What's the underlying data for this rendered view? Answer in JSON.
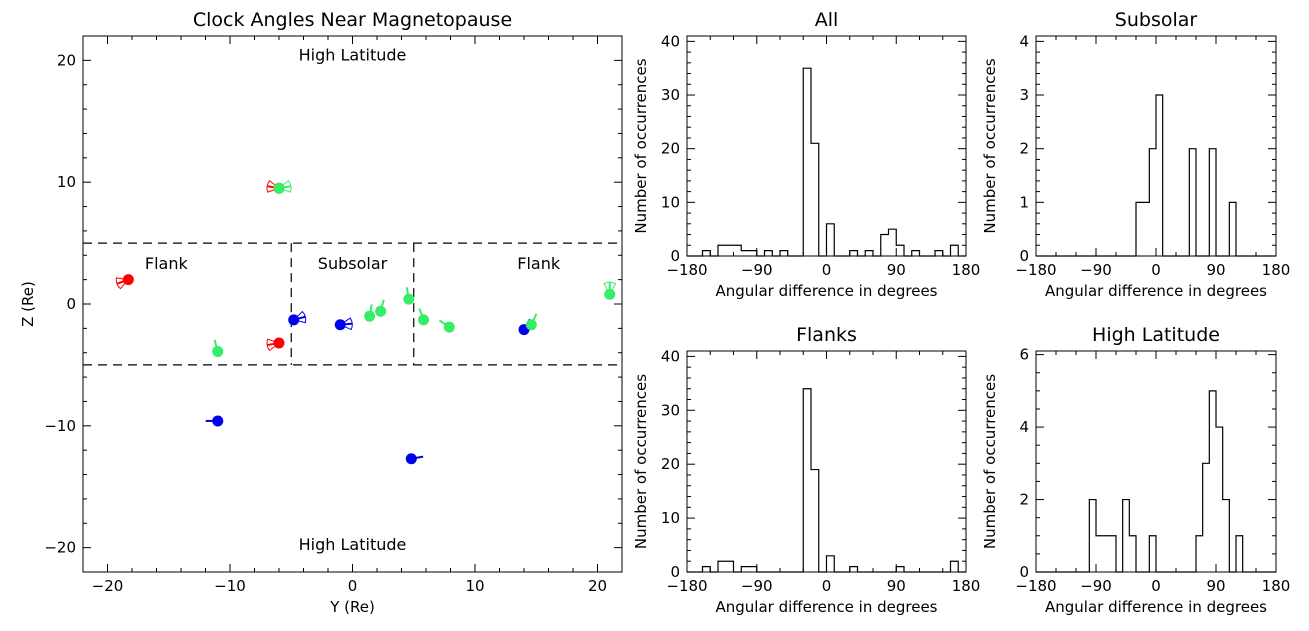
{
  "colors": {
    "axis": "#000000",
    "red": "#ff0000",
    "green": "#33ee66",
    "blue": "#0000ee"
  },
  "chart_data": [
    {
      "type": "scatter",
      "title": "Clock Angles Near Magnetopause",
      "xlabel": "Y (Re)",
      "ylabel": "Z (Re)",
      "xlim": [
        -22,
        22
      ],
      "ylim": [
        -22,
        22
      ],
      "xticks": [
        -20,
        -10,
        0,
        10,
        20
      ],
      "yticks": [
        -20,
        -10,
        0,
        10,
        20
      ],
      "xtick_labels": [
        "−20",
        "−10",
        "0",
        "10",
        "20"
      ],
      "ytick_labels": [
        "−20",
        "−10",
        "0",
        "10",
        "20"
      ],
      "region_labels": [
        {
          "text": "High Latitude",
          "x": 0,
          "y": 20.4
        },
        {
          "text": "High Latitude",
          "x": 0,
          "y": -19.8
        },
        {
          "text": "Flank",
          "x": -15.2,
          "y": 3.3
        },
        {
          "text": "Subsolar",
          "x": 0,
          "y": 3.3
        },
        {
          "text": "Flank",
          "x": 15.2,
          "y": 3.3
        }
      ],
      "region_lines": [
        {
          "x": [
            -22,
            22
          ],
          "y": [
            5,
            5
          ]
        },
        {
          "x": [
            -22,
            22
          ],
          "y": [
            -5,
            -5
          ]
        },
        {
          "x": [
            -5,
            -5
          ],
          "y": [
            5,
            -5
          ]
        },
        {
          "x": [
            5,
            5
          ],
          "y": [
            5,
            -5
          ]
        }
      ],
      "points": [
        {
          "y": -18.3,
          "z": 2.0,
          "color": "red",
          "tick": 200,
          "fan": true
        },
        {
          "y": -6.0,
          "z": 9.5,
          "color": "red",
          "tick": 170,
          "fan": true
        },
        {
          "y": -6.0,
          "z": 9.5,
          "color": "green",
          "tick": 10,
          "fan": true
        },
        {
          "y": -6.0,
          "z": -3.2,
          "color": "red",
          "tick": 190,
          "fan": true
        },
        {
          "y": -11.0,
          "z": -3.9,
          "color": "green",
          "tick": 105,
          "fan": false
        },
        {
          "y": -11.0,
          "z": -9.6,
          "color": "blue",
          "tick": 180,
          "fan": false
        },
        {
          "y": -4.8,
          "z": -1.3,
          "color": "blue",
          "tick": 15,
          "fan": true
        },
        {
          "y": -1.0,
          "z": -1.7,
          "color": "blue",
          "tick": 5,
          "fan": true
        },
        {
          "y": 1.4,
          "z": -1.0,
          "color": "green",
          "tick": 80,
          "fan": false
        },
        {
          "y": 2.3,
          "z": -0.6,
          "color": "green",
          "tick": 75,
          "fan": false
        },
        {
          "y": 4.6,
          "z": 0.4,
          "color": "green",
          "tick": 100,
          "fan": false
        },
        {
          "y": 4.8,
          "z": -12.7,
          "color": "blue",
          "tick": 10,
          "fan": false
        },
        {
          "y": 5.8,
          "z": -1.3,
          "color": "green",
          "tick": 110,
          "fan": false
        },
        {
          "y": 7.9,
          "z": -1.9,
          "color": "green",
          "tick": 145,
          "fan": false
        },
        {
          "y": 14.0,
          "z": -2.1,
          "color": "blue",
          "tick": 60,
          "fan": false
        },
        {
          "y": 14.6,
          "z": -1.7,
          "color": "green",
          "tick": 65,
          "fan": false
        },
        {
          "y": 21.0,
          "z": 0.8,
          "color": "green",
          "tick": 90,
          "fan": true
        }
      ]
    },
    {
      "type": "histogram",
      "title": "All",
      "xlabel": "Angular difference in degrees",
      "ylabel": "Number of occurrences",
      "xlim": [
        -180,
        180
      ],
      "ylim": [
        0,
        41
      ],
      "xticks": [
        -180,
        -90,
        0,
        90,
        180
      ],
      "xtick_labels": [
        "−180",
        "−90",
        "0",
        "90",
        "180"
      ],
      "yticks": [
        0,
        10,
        20,
        30,
        40
      ],
      "ytick_labels": [
        "0",
        "10",
        "20",
        "30",
        "40"
      ],
      "bin_edges": [
        -180,
        -170,
        -160,
        -150,
        -140,
        -130,
        -120,
        -110,
        -100,
        -90,
        -80,
        -70,
        -60,
        -50,
        -40,
        -30,
        -20,
        -10,
        0,
        10,
        20,
        30,
        40,
        50,
        60,
        70,
        80,
        90,
        100,
        110,
        120,
        130,
        140,
        150,
        160,
        170,
        180
      ],
      "counts": [
        0,
        0,
        1,
        0,
        2,
        2,
        2,
        1,
        1,
        0,
        1,
        0,
        1,
        0,
        0,
        35,
        21,
        0,
        6,
        0,
        0,
        1,
        0,
        1,
        0,
        4,
        5,
        2,
        0,
        1,
        0,
        0,
        1,
        0,
        2,
        0
      ]
    },
    {
      "type": "histogram",
      "title": "Subsolar",
      "xlabel": "Angular difference in degrees",
      "ylabel": "Number of occurrences",
      "xlim": [
        -180,
        180
      ],
      "ylim": [
        0,
        4.1
      ],
      "xticks": [
        -180,
        -90,
        0,
        90,
        180
      ],
      "xtick_labels": [
        "−180",
        "−90",
        "0",
        "90",
        "180"
      ],
      "yticks": [
        0,
        1,
        2,
        3,
        4
      ],
      "ytick_labels": [
        "0",
        "1",
        "2",
        "3",
        "4"
      ],
      "bin_edges": [
        -180,
        -170,
        -160,
        -150,
        -140,
        -130,
        -120,
        -110,
        -100,
        -90,
        -80,
        -70,
        -60,
        -50,
        -40,
        -30,
        -20,
        -10,
        0,
        10,
        20,
        30,
        40,
        50,
        60,
        70,
        80,
        90,
        100,
        110,
        120,
        130,
        140,
        150,
        160,
        170,
        180
      ],
      "counts": [
        0,
        0,
        0,
        0,
        0,
        0,
        0,
        0,
        0,
        0,
        0,
        0,
        0,
        0,
        0,
        1,
        1,
        2,
        3,
        0,
        0,
        0,
        0,
        2,
        0,
        0,
        2,
        0,
        0,
        1,
        0,
        0,
        0,
        0,
        0,
        0
      ]
    },
    {
      "type": "histogram",
      "title": "Flanks",
      "xlabel": "Angular difference in degrees",
      "ylabel": "Number of occurrences",
      "xlim": [
        -180,
        180
      ],
      "ylim": [
        0,
        41
      ],
      "xticks": [
        -180,
        -90,
        0,
        90,
        180
      ],
      "xtick_labels": [
        "−180",
        "−90",
        "0",
        "90",
        "180"
      ],
      "yticks": [
        0,
        10,
        20,
        30,
        40
      ],
      "ytick_labels": [
        "0",
        "10",
        "20",
        "30",
        "40"
      ],
      "bin_edges": [
        -180,
        -170,
        -160,
        -150,
        -140,
        -130,
        -120,
        -110,
        -100,
        -90,
        -80,
        -70,
        -60,
        -50,
        -40,
        -30,
        -20,
        -10,
        0,
        10,
        20,
        30,
        40,
        50,
        60,
        70,
        80,
        90,
        100,
        110,
        120,
        130,
        140,
        150,
        160,
        170,
        180
      ],
      "counts": [
        0,
        0,
        1,
        0,
        2,
        2,
        0,
        1,
        1,
        0,
        0,
        0,
        0,
        0,
        0,
        34,
        19,
        0,
        3,
        0,
        0,
        1,
        0,
        0,
        0,
        0,
        0,
        1,
        0,
        0,
        0,
        0,
        0,
        0,
        2,
        0
      ]
    },
    {
      "type": "histogram",
      "title": "High Latitude",
      "xlabel": "Angular difference in degrees",
      "ylabel": "Number of occurrences",
      "xlim": [
        -180,
        180
      ],
      "ylim": [
        0,
        6.1
      ],
      "xticks": [
        -180,
        -90,
        0,
        90,
        180
      ],
      "xtick_labels": [
        "−180",
        "−90",
        "0",
        "90",
        "180"
      ],
      "yticks": [
        0,
        2,
        4,
        6
      ],
      "ytick_labels": [
        "0",
        "2",
        "4",
        "6"
      ],
      "bin_edges": [
        -180,
        -170,
        -160,
        -150,
        -140,
        -130,
        -120,
        -110,
        -100,
        -90,
        -80,
        -70,
        -60,
        -50,
        -40,
        -30,
        -20,
        -10,
        0,
        10,
        20,
        30,
        40,
        50,
        60,
        70,
        80,
        90,
        100,
        110,
        120,
        130,
        140,
        150,
        160,
        170,
        180
      ],
      "counts": [
        0,
        0,
        0,
        0,
        0,
        0,
        0,
        0,
        2,
        1,
        1,
        1,
        0,
        2,
        1,
        0,
        0,
        1,
        0,
        0,
        0,
        0,
        0,
        0,
        1,
        3,
        5,
        4,
        2,
        0,
        1,
        0,
        0,
        0,
        0,
        0
      ]
    }
  ]
}
